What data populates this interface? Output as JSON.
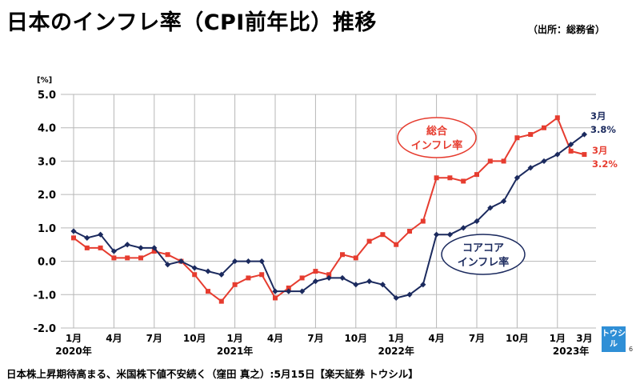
{
  "header": {
    "title": "日本のインフレ率（CPI前年比）推移",
    "source": "（出所：総務省）"
  },
  "footer": {
    "text": "日本株上昇期待高まる、米国株下値不安続く（窪田 真之）:5月15日【楽天証券 トウシル】",
    "logo_text": "トウシル",
    "page_number": "6"
  },
  "colors": {
    "total": "#e63c2f",
    "core": "#1b2a5e",
    "grid": "#b7b7b7"
  },
  "chart_data": {
    "type": "line",
    "yunit": "[%]",
    "ylim": [
      -2.0,
      5.0
    ],
    "yticks": [
      "5.0",
      "4.0",
      "3.0",
      "2.0",
      "1.0",
      "0.0",
      "-1.0",
      "-2.0"
    ],
    "ytick_values": [
      5,
      4,
      3,
      2,
      1,
      0,
      -1,
      -2
    ],
    "month_labels": [
      {
        "label": "1月",
        "index": 0
      },
      {
        "label": "4月",
        "index": 3
      },
      {
        "label": "7月",
        "index": 6
      },
      {
        "label": "10月",
        "index": 9
      },
      {
        "label": "1月",
        "index": 12
      },
      {
        "label": "4月",
        "index": 15
      },
      {
        "label": "7月",
        "index": 18
      },
      {
        "label": "10月",
        "index": 21
      },
      {
        "label": "1月",
        "index": 24
      },
      {
        "label": "4月",
        "index": 27
      },
      {
        "label": "7月",
        "index": 30
      },
      {
        "label": "10月",
        "index": 33
      },
      {
        "label": "1月",
        "index": 36
      },
      {
        "label": "3月",
        "index": 38
      }
    ],
    "year_labels": [
      {
        "label": "2020年",
        "index": 0
      },
      {
        "label": "2021年",
        "index": 12
      },
      {
        "label": "2022年",
        "index": 24
      },
      {
        "label": "2023年",
        "index": 37
      }
    ],
    "x": [
      "2020-01",
      "2020-02",
      "2020-03",
      "2020-04",
      "2020-05",
      "2020-06",
      "2020-07",
      "2020-08",
      "2020-09",
      "2020-10",
      "2020-11",
      "2020-12",
      "2021-01",
      "2021-02",
      "2021-03",
      "2021-04",
      "2021-05",
      "2021-06",
      "2021-07",
      "2021-08",
      "2021-09",
      "2021-10",
      "2021-11",
      "2021-12",
      "2022-01",
      "2022-02",
      "2022-03",
      "2022-04",
      "2022-05",
      "2022-06",
      "2022-07",
      "2022-08",
      "2022-09",
      "2022-10",
      "2022-11",
      "2022-12",
      "2023-01",
      "2023-02",
      "2023-03"
    ],
    "series": [
      {
        "name": "総合インフレ率",
        "label_lines": [
          "総合",
          "インフレ率"
        ],
        "end_month": "3月",
        "end_value": "3.2%",
        "values": [
          0.7,
          0.4,
          0.4,
          0.1,
          0.1,
          0.1,
          0.3,
          0.2,
          0.0,
          -0.4,
          -0.9,
          -1.2,
          -0.7,
          -0.5,
          -0.4,
          -1.1,
          -0.8,
          -0.5,
          -0.3,
          -0.4,
          0.2,
          0.1,
          0.6,
          0.8,
          0.5,
          0.9,
          1.2,
          2.5,
          2.5,
          2.4,
          2.6,
          3.0,
          3.0,
          3.7,
          3.8,
          4.0,
          4.3,
          3.3,
          3.2
        ]
      },
      {
        "name": "コアコアインフレ率",
        "label_lines": [
          "コアコア",
          "インフレ率"
        ],
        "end_month": "3月",
        "end_value": "3.8%",
        "values": [
          0.9,
          0.7,
          0.8,
          0.3,
          0.5,
          0.4,
          0.4,
          -0.1,
          0.0,
          -0.2,
          -0.3,
          -0.4,
          0.0,
          0.0,
          0.0,
          -0.9,
          -0.9,
          -0.9,
          -0.6,
          -0.5,
          -0.5,
          -0.7,
          -0.6,
          -0.7,
          -1.1,
          -1.0,
          -0.7,
          0.8,
          0.8,
          1.0,
          1.2,
          1.6,
          1.8,
          2.5,
          2.8,
          3.0,
          3.2,
          3.5,
          3.8
        ]
      }
    ]
  }
}
